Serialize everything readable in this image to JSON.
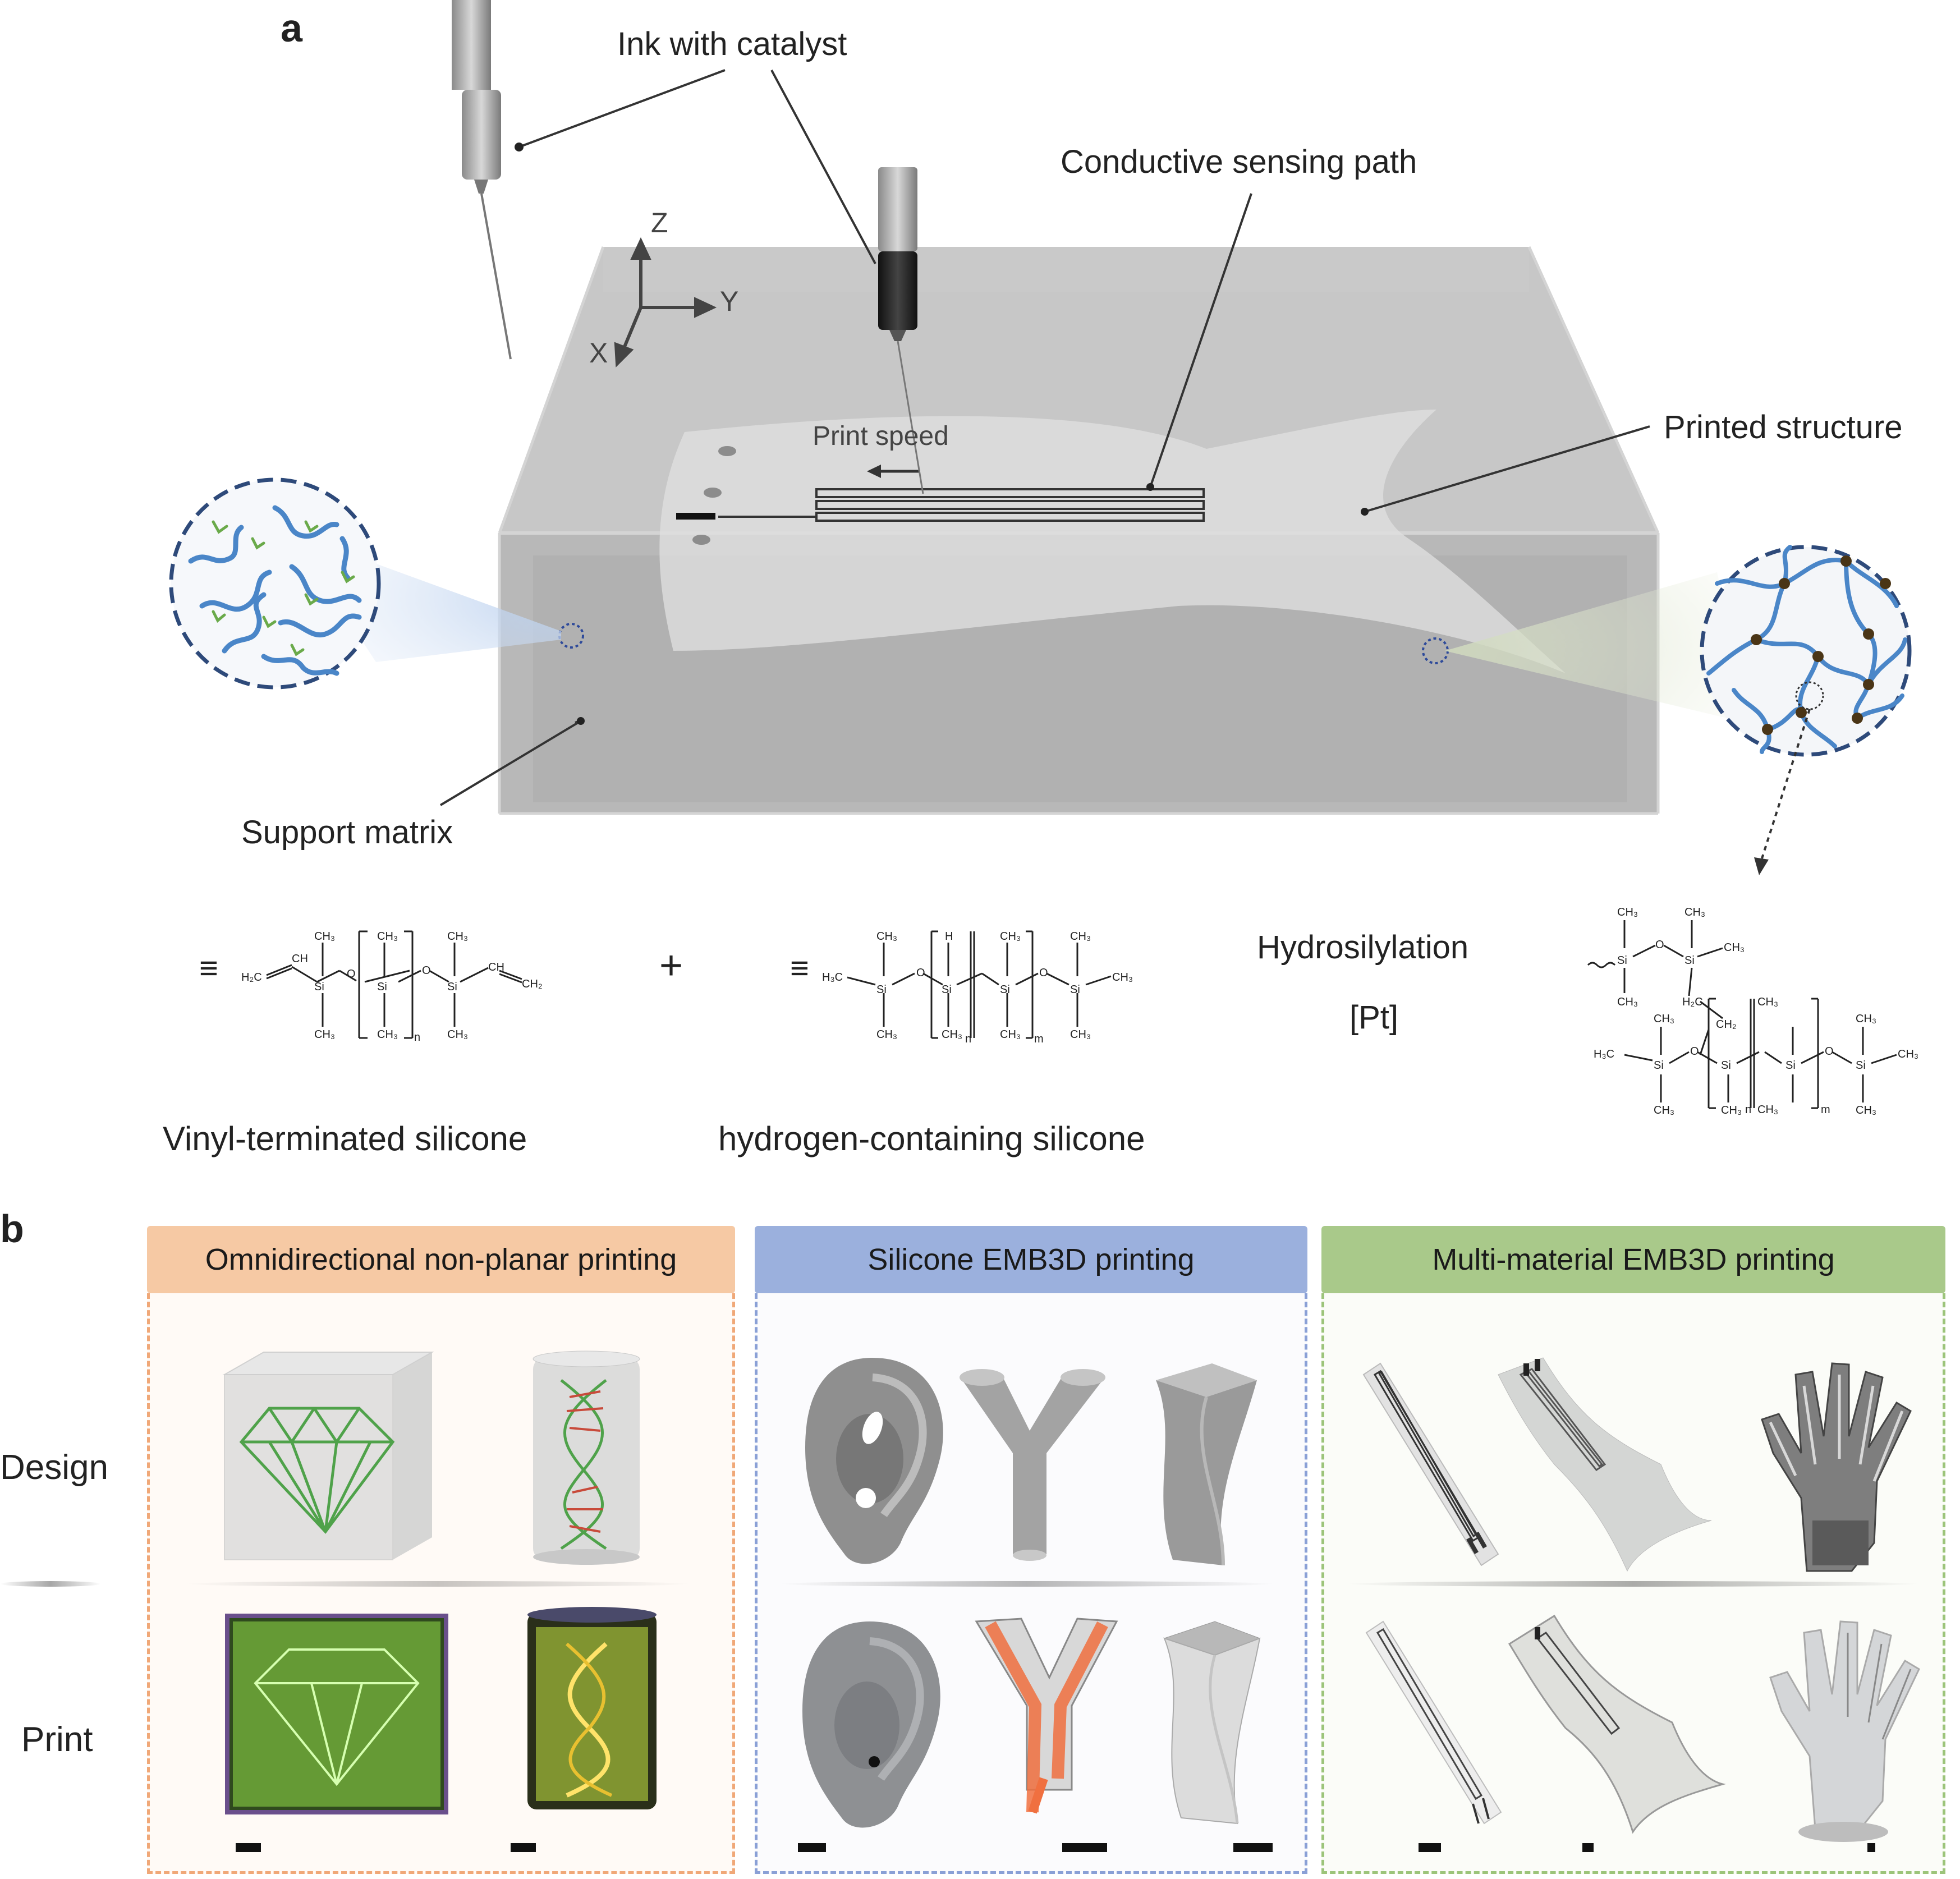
{
  "panel_a": {
    "letter": "a",
    "labels": {
      "ink": "Ink with catalyst",
      "conductive": "Conductive sensing path",
      "printed": "Printed structure",
      "support": "Support matrix",
      "print_speed": "Print speed",
      "axis_z": "Z",
      "axis_y": "Y",
      "axis_x": "X"
    },
    "reaction": {
      "equiv": "≡",
      "plus": "+",
      "arrow_top": "Hydrosilylation",
      "arrow_bottom": "[Pt]",
      "reactant1_name": "Vinyl-terminated silicone",
      "reactant2_name": "hydrogen-containing silicone"
    },
    "colors": {
      "vinyl_chain": "#4a86c8",
      "hydride_chain": "#6aaa4a",
      "crosslink": "#4a3516",
      "ring": "#2e4a7a"
    }
  },
  "panel_b": {
    "letter": "b",
    "row_design": "Design",
    "row_print": "Print",
    "sections": [
      {
        "title": "Omnidirectional non-planar printing",
        "color": "#f6c9a4",
        "border": "#f0a878"
      },
      {
        "title": "Silicone EMB3D printing",
        "color": "#9bb0dd",
        "border": "#8aa0d6"
      },
      {
        "title": "Multi-material EMB3D printing",
        "color": "#a9c98a",
        "border": "#9cc47a"
      }
    ]
  }
}
